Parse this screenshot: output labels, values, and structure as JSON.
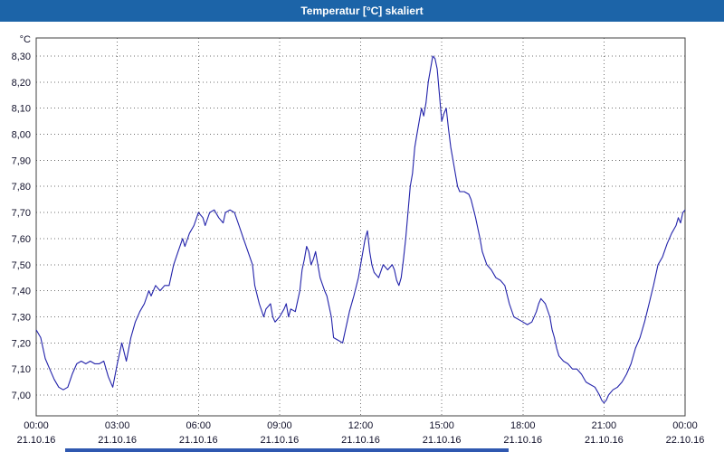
{
  "window": {
    "title": "Temperatur [°C] skaliert"
  },
  "colors": {
    "titlebar": "#1c64a8",
    "line": "#2222aa",
    "grid": "#707070",
    "border": "#404040",
    "plot_background": "#ffffff",
    "text": "#10102a",
    "scrollbar": "#2f58b0"
  },
  "chart_data": {
    "type": "line",
    "title": "Temperatur [°C] skaliert",
    "ylabel": "°C",
    "xlabel": "",
    "legend": "none",
    "grid": "dotted",
    "ylim": [
      6.92,
      8.37
    ],
    "xlim_minutes": [
      0,
      1440
    ],
    "y_ticks": [
      {
        "label": "8,30",
        "value": 8.3
      },
      {
        "label": "8,20",
        "value": 8.2
      },
      {
        "label": "8,10",
        "value": 8.1
      },
      {
        "label": "8,00",
        "value": 8.0
      },
      {
        "label": "7,90",
        "value": 7.9
      },
      {
        "label": "7,80",
        "value": 7.8
      },
      {
        "label": "7,70",
        "value": 7.7
      },
      {
        "label": "7,60",
        "value": 7.6
      },
      {
        "label": "7,50",
        "value": 7.5
      },
      {
        "label": "7,40",
        "value": 7.4
      },
      {
        "label": "7,30",
        "value": 7.3
      },
      {
        "label": "7,20",
        "value": 7.2
      },
      {
        "label": "7,10",
        "value": 7.1
      },
      {
        "label": "7,00",
        "value": 7.0
      }
    ],
    "x_ticks": [
      {
        "time": "00:00",
        "date": "21.10.16",
        "minutes": 0
      },
      {
        "time": "03:00",
        "date": "21.10.16",
        "minutes": 180
      },
      {
        "time": "06:00",
        "date": "21.10.16",
        "minutes": 360
      },
      {
        "time": "09:00",
        "date": "21.10.16",
        "minutes": 540
      },
      {
        "time": "12:00",
        "date": "21.10.16",
        "minutes": 720
      },
      {
        "time": "15:00",
        "date": "21.10.16",
        "minutes": 900
      },
      {
        "time": "18:00",
        "date": "21.10.16",
        "minutes": 1080
      },
      {
        "time": "21:00",
        "date": "21.10.16",
        "minutes": 1260
      },
      {
        "time": "00:00",
        "date": "22.10.16",
        "minutes": 1440
      }
    ],
    "series": [
      {
        "name": "Temperatur",
        "points": [
          [
            0,
            7.25
          ],
          [
            10,
            7.22
          ],
          [
            20,
            7.14
          ],
          [
            30,
            7.1
          ],
          [
            40,
            7.06
          ],
          [
            50,
            7.03
          ],
          [
            60,
            7.02
          ],
          [
            70,
            7.03
          ],
          [
            80,
            7.08
          ],
          [
            90,
            7.12
          ],
          [
            100,
            7.13
          ],
          [
            110,
            7.12
          ],
          [
            120,
            7.13
          ],
          [
            130,
            7.12
          ],
          [
            140,
            7.12
          ],
          [
            150,
            7.13
          ],
          [
            160,
            7.07
          ],
          [
            170,
            7.03
          ],
          [
            180,
            7.12
          ],
          [
            190,
            7.2
          ],
          [
            200,
            7.13
          ],
          [
            210,
            7.22
          ],
          [
            220,
            7.28
          ],
          [
            230,
            7.32
          ],
          [
            240,
            7.35
          ],
          [
            250,
            7.4
          ],
          [
            255,
            7.38
          ],
          [
            265,
            7.42
          ],
          [
            275,
            7.4
          ],
          [
            285,
            7.42
          ],
          [
            295,
            7.42
          ],
          [
            305,
            7.5
          ],
          [
            315,
            7.55
          ],
          [
            325,
            7.6
          ],
          [
            330,
            7.57
          ],
          [
            340,
            7.62
          ],
          [
            350,
            7.65
          ],
          [
            360,
            7.7
          ],
          [
            370,
            7.68
          ],
          [
            375,
            7.65
          ],
          [
            385,
            7.7
          ],
          [
            395,
            7.71
          ],
          [
            405,
            7.68
          ],
          [
            415,
            7.66
          ],
          [
            420,
            7.7
          ],
          [
            430,
            7.71
          ],
          [
            440,
            7.7
          ],
          [
            450,
            7.65
          ],
          [
            460,
            7.6
          ],
          [
            470,
            7.55
          ],
          [
            480,
            7.5
          ],
          [
            485,
            7.42
          ],
          [
            495,
            7.35
          ],
          [
            505,
            7.3
          ],
          [
            510,
            7.33
          ],
          [
            520,
            7.35
          ],
          [
            525,
            7.3
          ],
          [
            530,
            7.28
          ],
          [
            540,
            7.3
          ],
          [
            550,
            7.33
          ],
          [
            555,
            7.35
          ],
          [
            560,
            7.3
          ],
          [
            565,
            7.33
          ],
          [
            575,
            7.32
          ],
          [
            585,
            7.4
          ],
          [
            590,
            7.48
          ],
          [
            595,
            7.52
          ],
          [
            600,
            7.57
          ],
          [
            605,
            7.55
          ],
          [
            610,
            7.5
          ],
          [
            615,
            7.52
          ],
          [
            620,
            7.55
          ],
          [
            625,
            7.5
          ],
          [
            630,
            7.45
          ],
          [
            640,
            7.4
          ],
          [
            645,
            7.38
          ],
          [
            655,
            7.3
          ],
          [
            660,
            7.22
          ],
          [
            670,
            7.21
          ],
          [
            680,
            7.2
          ],
          [
            690,
            7.28
          ],
          [
            695,
            7.32
          ],
          [
            705,
            7.38
          ],
          [
            715,
            7.45
          ],
          [
            720,
            7.5
          ],
          [
            725,
            7.55
          ],
          [
            730,
            7.6
          ],
          [
            735,
            7.63
          ],
          [
            740,
            7.55
          ],
          [
            745,
            7.5
          ],
          [
            750,
            7.47
          ],
          [
            760,
            7.45
          ],
          [
            770,
            7.5
          ],
          [
            780,
            7.48
          ],
          [
            790,
            7.5
          ],
          [
            795,
            7.48
          ],
          [
            800,
            7.44
          ],
          [
            805,
            7.42
          ],
          [
            810,
            7.45
          ],
          [
            815,
            7.52
          ],
          [
            820,
            7.6
          ],
          [
            825,
            7.7
          ],
          [
            830,
            7.8
          ],
          [
            835,
            7.85
          ],
          [
            840,
            7.95
          ],
          [
            845,
            8.0
          ],
          [
            850,
            8.05
          ],
          [
            855,
            8.1
          ],
          [
            860,
            8.07
          ],
          [
            865,
            8.12
          ],
          [
            870,
            8.2
          ],
          [
            875,
            8.25
          ],
          [
            880,
            8.3
          ],
          [
            885,
            8.29
          ],
          [
            890,
            8.25
          ],
          [
            895,
            8.15
          ],
          [
            900,
            8.05
          ],
          [
            905,
            8.08
          ],
          [
            910,
            8.1
          ],
          [
            915,
            8.02
          ],
          [
            920,
            7.95
          ],
          [
            925,
            7.9
          ],
          [
            930,
            7.85
          ],
          [
            935,
            7.8
          ],
          [
            940,
            7.78
          ],
          [
            950,
            7.78
          ],
          [
            960,
            7.77
          ],
          [
            965,
            7.75
          ],
          [
            975,
            7.68
          ],
          [
            985,
            7.6
          ],
          [
            990,
            7.55
          ],
          [
            1000,
            7.5
          ],
          [
            1010,
            7.48
          ],
          [
            1020,
            7.45
          ],
          [
            1030,
            7.44
          ],
          [
            1040,
            7.42
          ],
          [
            1050,
            7.35
          ],
          [
            1060,
            7.3
          ],
          [
            1070,
            7.29
          ],
          [
            1080,
            7.28
          ],
          [
            1090,
            7.27
          ],
          [
            1100,
            7.28
          ],
          [
            1110,
            7.32
          ],
          [
            1115,
            7.35
          ],
          [
            1120,
            7.37
          ],
          [
            1125,
            7.36
          ],
          [
            1130,
            7.35
          ],
          [
            1140,
            7.3
          ],
          [
            1145,
            7.25
          ],
          [
            1150,
            7.22
          ],
          [
            1155,
            7.18
          ],
          [
            1160,
            7.15
          ],
          [
            1170,
            7.13
          ],
          [
            1180,
            7.12
          ],
          [
            1190,
            7.1
          ],
          [
            1200,
            7.1
          ],
          [
            1210,
            7.08
          ],
          [
            1220,
            7.05
          ],
          [
            1230,
            7.04
          ],
          [
            1240,
            7.03
          ],
          [
            1250,
            7.0
          ],
          [
            1255,
            6.98
          ],
          [
            1260,
            6.97
          ],
          [
            1265,
            6.98
          ],
          [
            1270,
            7.0
          ],
          [
            1280,
            7.02
          ],
          [
            1290,
            7.03
          ],
          [
            1300,
            7.05
          ],
          [
            1310,
            7.08
          ],
          [
            1320,
            7.12
          ],
          [
            1330,
            7.18
          ],
          [
            1340,
            7.22
          ],
          [
            1350,
            7.28
          ],
          [
            1360,
            7.35
          ],
          [
            1370,
            7.42
          ],
          [
            1380,
            7.5
          ],
          [
            1390,
            7.53
          ],
          [
            1400,
            7.58
          ],
          [
            1410,
            7.62
          ],
          [
            1420,
            7.65
          ],
          [
            1425,
            7.68
          ],
          [
            1430,
            7.66
          ],
          [
            1435,
            7.7
          ],
          [
            1440,
            7.71
          ]
        ]
      }
    ]
  }
}
